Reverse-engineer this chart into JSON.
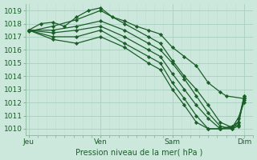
{
  "title": "Pression niveau de la mer( hPa )",
  "ylabel_vals": [
    1010,
    1011,
    1012,
    1013,
    1014,
    1015,
    1016,
    1017,
    1018,
    1019
  ],
  "xtick_labels": [
    "Jeu",
    "Ven",
    "Sam",
    "Dim"
  ],
  "xtick_positions": [
    0,
    24,
    48,
    72
  ],
  "ylim": [
    1009.5,
    1019.5
  ],
  "xlim": [
    -1,
    75
  ],
  "bg_color": "#cce8dc",
  "grid_color_major": "#aacfbf",
  "grid_color_minor": "#bdddd0",
  "line_color": "#1a5e28",
  "marker": "D",
  "markersize": 2.2,
  "linewidth": 0.9,
  "series": [
    [
      0,
      1017.5,
      4,
      1018.0,
      8,
      1018.1,
      12,
      1017.8,
      16,
      1018.5,
      20,
      1019.0,
      24,
      1019.2,
      28,
      1018.5,
      32,
      1018.2,
      36,
      1017.8,
      40,
      1017.5,
      44,
      1017.2,
      48,
      1016.2,
      52,
      1015.5,
      56,
      1014.8,
      60,
      1013.5,
      64,
      1012.8,
      66,
      1012.5,
      72,
      1012.3
    ],
    [
      0,
      1017.4,
      8,
      1017.8,
      16,
      1018.3,
      24,
      1019.0,
      32,
      1018.0,
      40,
      1017.0,
      44,
      1016.5,
      48,
      1015.2,
      52,
      1014.0,
      56,
      1013.0,
      60,
      1011.8,
      64,
      1010.5,
      68,
      1010.1,
      70,
      1010.8,
      72,
      1012.0
    ],
    [
      0,
      1017.5,
      8,
      1017.5,
      16,
      1017.8,
      24,
      1018.2,
      32,
      1017.5,
      40,
      1016.5,
      44,
      1016.0,
      48,
      1015.0,
      52,
      1013.8,
      56,
      1012.5,
      60,
      1011.2,
      64,
      1010.2,
      68,
      1010.0,
      70,
      1010.5,
      72,
      1012.2
    ],
    [
      0,
      1017.5,
      8,
      1017.3,
      16,
      1017.5,
      24,
      1017.8,
      32,
      1017.0,
      40,
      1016.0,
      44,
      1015.5,
      48,
      1014.2,
      52,
      1013.0,
      56,
      1011.8,
      60,
      1010.8,
      64,
      1010.0,
      68,
      1010.0,
      70,
      1010.2,
      72,
      1012.5
    ],
    [
      0,
      1017.5,
      8,
      1017.0,
      16,
      1017.0,
      24,
      1017.5,
      32,
      1016.5,
      40,
      1015.5,
      44,
      1015.0,
      48,
      1013.5,
      52,
      1012.3,
      56,
      1011.0,
      60,
      1010.0,
      64,
      1010.0,
      68,
      1010.1,
      70,
      1010.3,
      72,
      1012.4
    ],
    [
      0,
      1017.5,
      8,
      1016.8,
      16,
      1016.5,
      24,
      1017.0,
      32,
      1016.2,
      40,
      1015.0,
      44,
      1014.5,
      48,
      1013.0,
      52,
      1011.8,
      56,
      1010.5,
      60,
      1010.0,
      64,
      1010.0,
      68,
      1010.2,
      70,
      1010.5,
      72,
      1012.5
    ]
  ]
}
